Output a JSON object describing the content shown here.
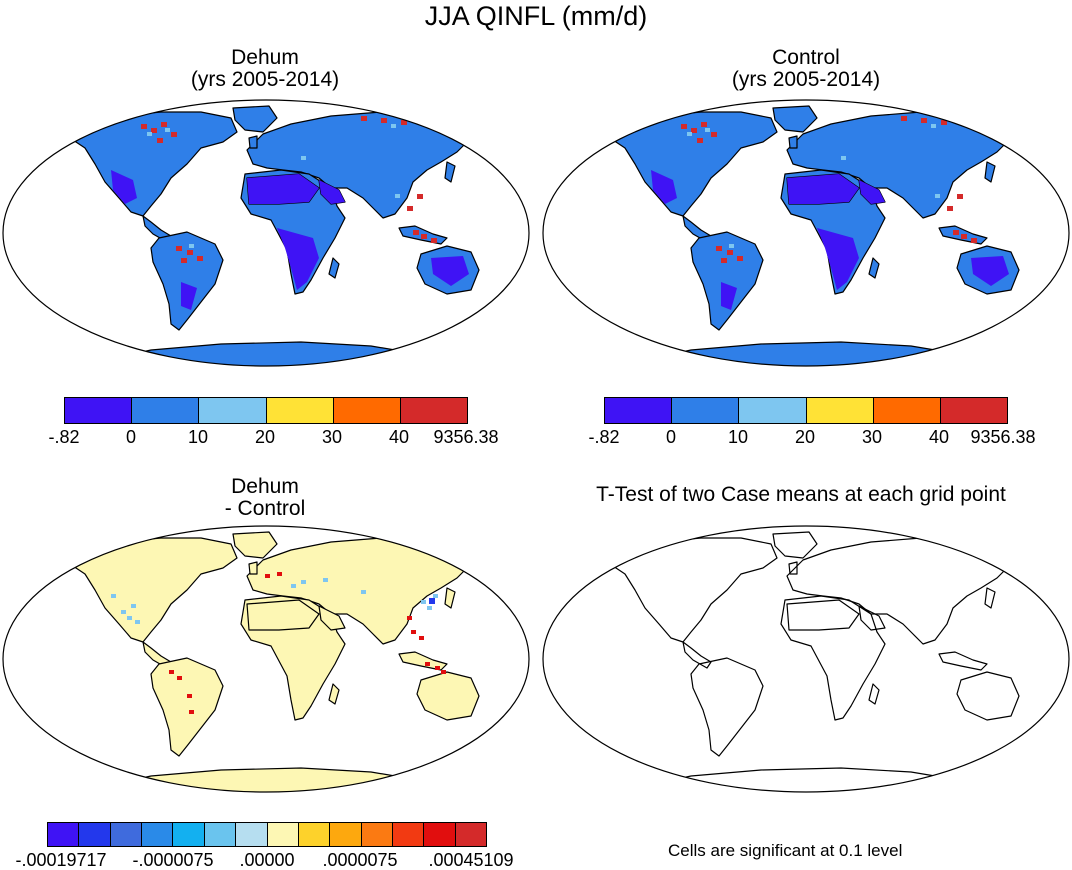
{
  "title": "JJA QINFL (mm/d)",
  "panels": {
    "dehum": {
      "title_line1": "Dehum",
      "title_line2": "(yrs 2005-2014)"
    },
    "control": {
      "title_line1": "Control",
      "title_line2": "(yrs 2005-2014)"
    },
    "diff": {
      "title_line1": "Dehum",
      "title_line2": "- Control"
    },
    "ttest": {
      "title": "T-Test of two Case means at each grid point",
      "note": "Cells are significant at 0.1 level"
    }
  },
  "legends": {
    "main": {
      "colors": [
        "#3f13f5",
        "#2f7fe8",
        "#7ec6f0",
        "#ffe236",
        "#ff6a00",
        "#d42a2a"
      ],
      "labels": [
        "-.82",
        "0",
        "10",
        "20",
        "30",
        "40",
        "9356.38"
      ]
    },
    "diff": {
      "colors": [
        "#3f13f5",
        "#2338ec",
        "#3f6bdd",
        "#2a8ae8",
        "#13b0f0",
        "#6ac4ee",
        "#b6def0",
        "#fdf7b4",
        "#fdd22b",
        "#fda80e",
        "#fb7a12",
        "#f23a12",
        "#e10e0e",
        "#d42a2a"
      ],
      "labels": [
        "-.00019717",
        "-.0000075",
        ".00000",
        ".0000075",
        ".00045109"
      ]
    }
  },
  "map_colors": {
    "land_main": "#2f7fe8",
    "land_dry": "#3f13f5",
    "land_diff": "#fdf7b4",
    "hot": "#d42a2a",
    "light": "#7ec6f0",
    "ocean": "#ffffff"
  }
}
